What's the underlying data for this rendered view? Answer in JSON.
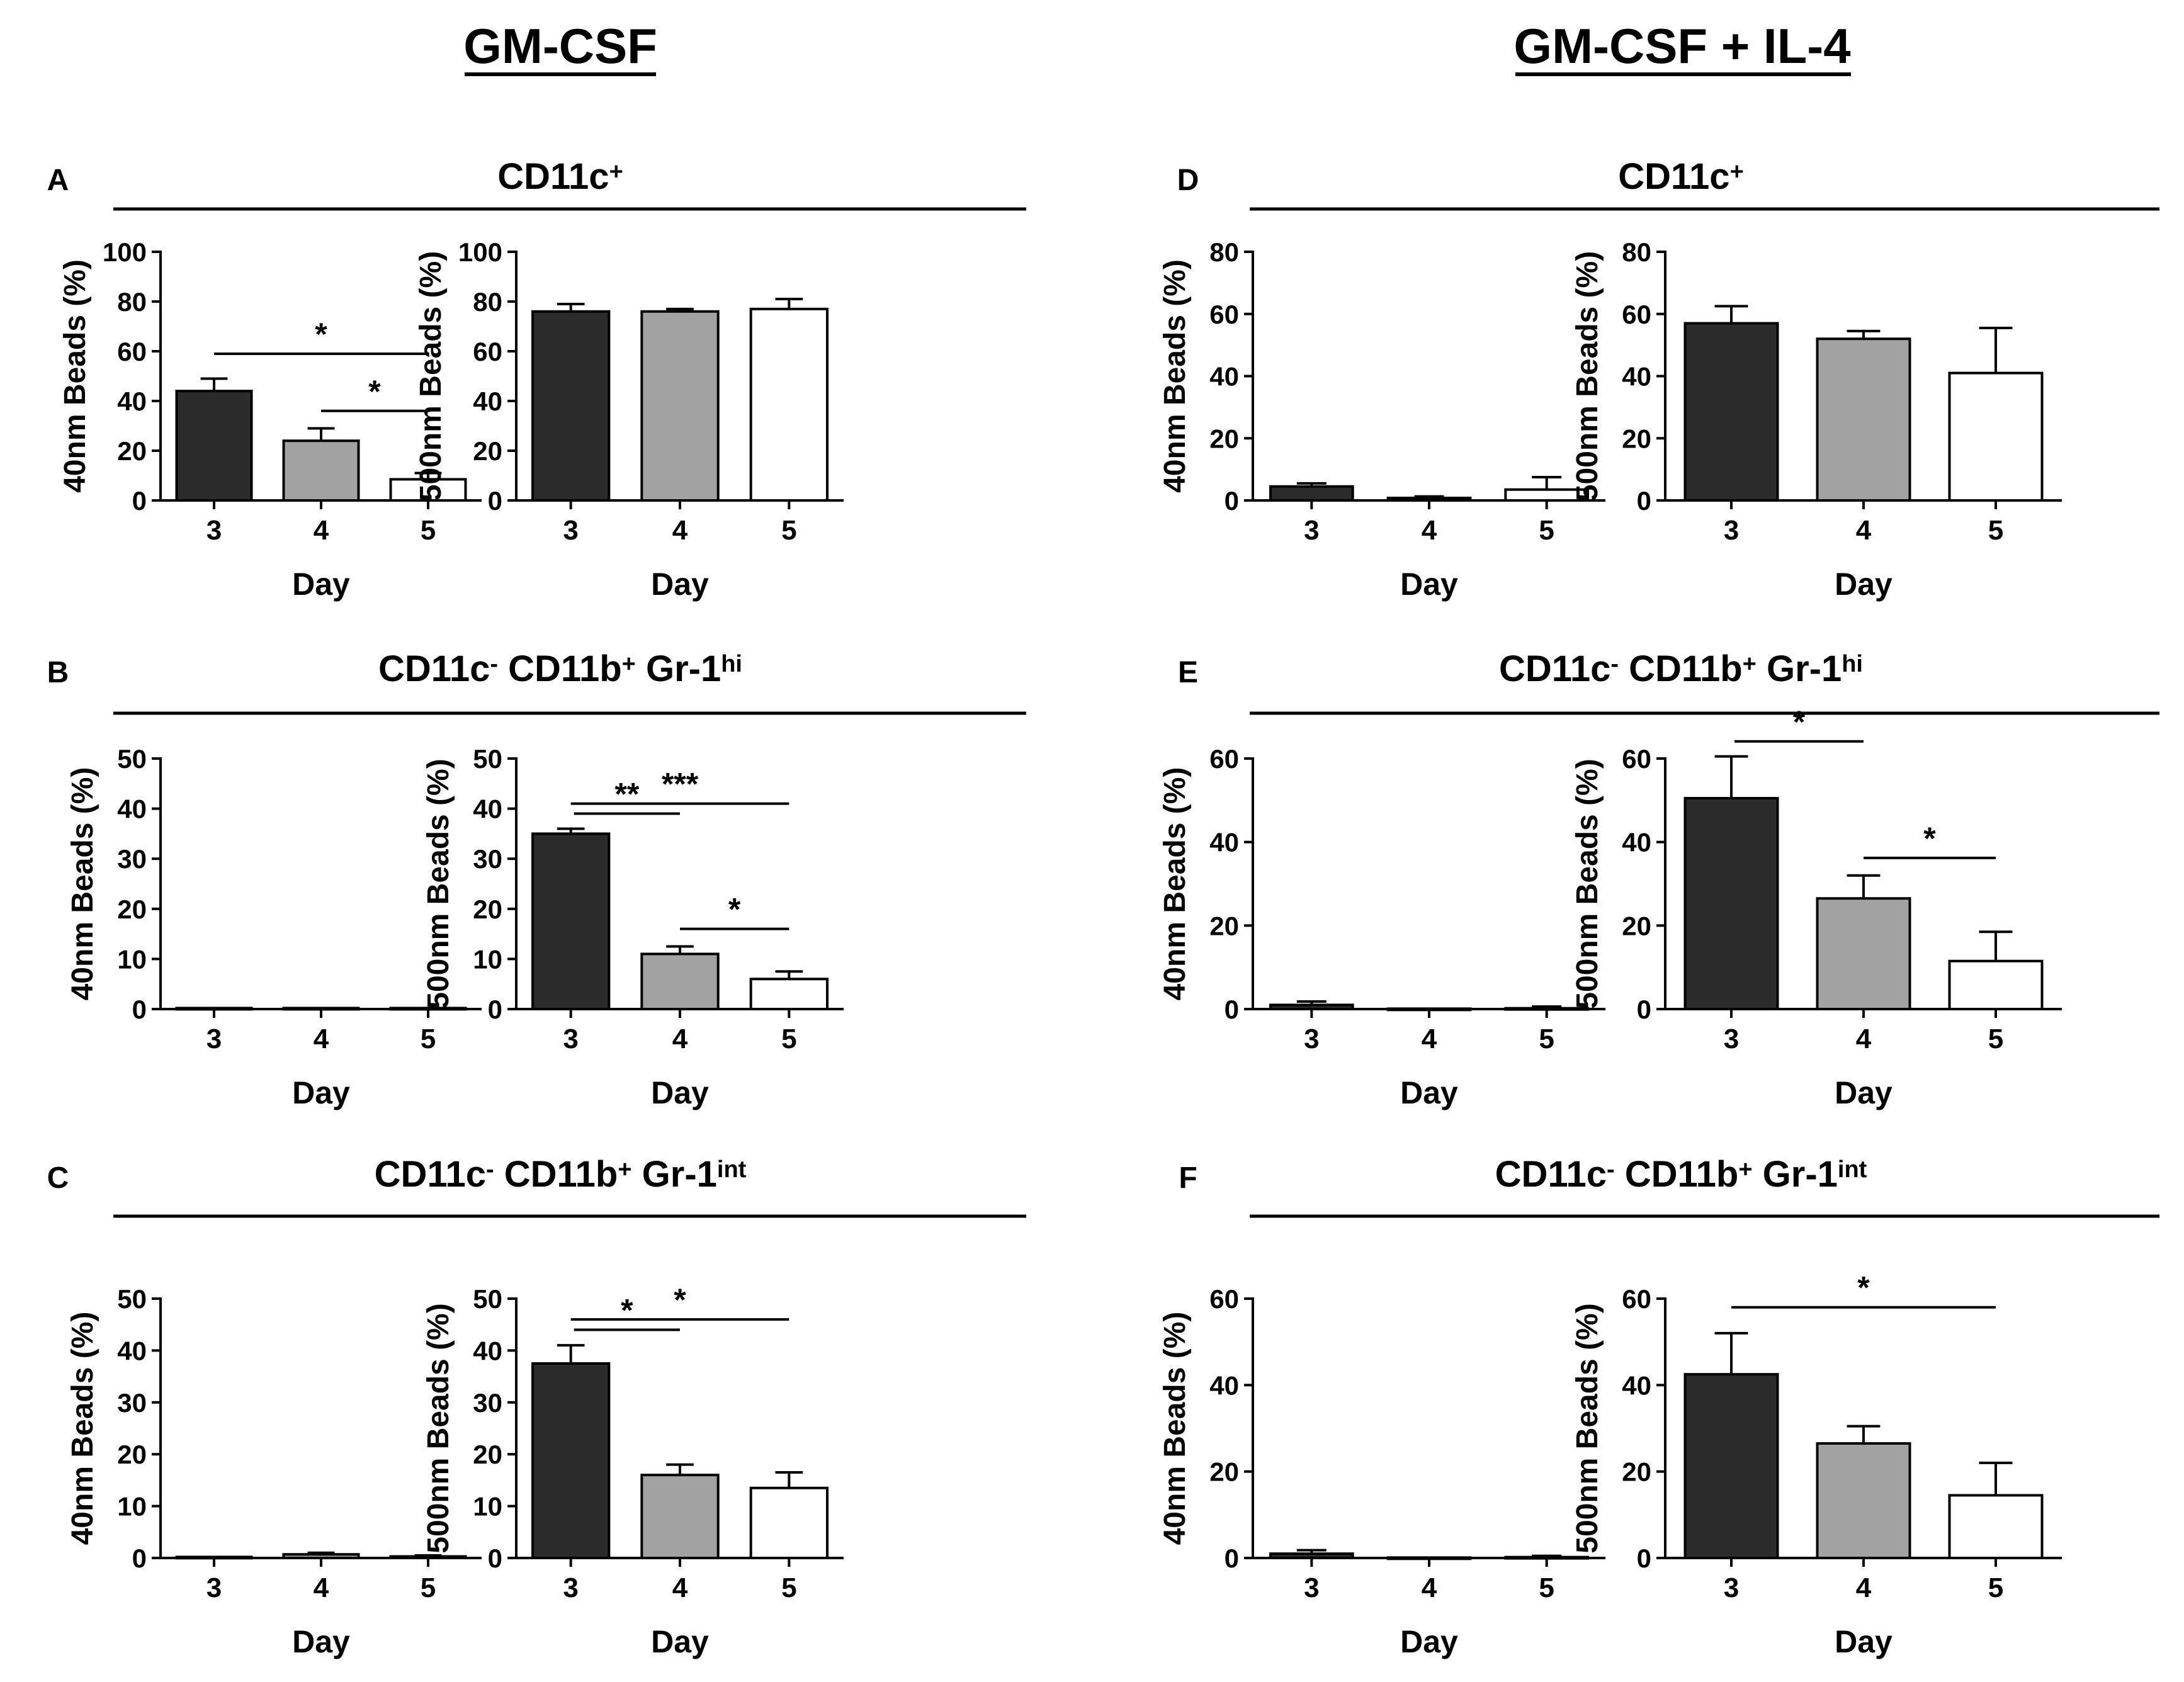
{
  "figure": {
    "column_titles": [
      "GM-CSF",
      "GM-CSF + IL-4"
    ]
  },
  "colors": {
    "day3": "#2b2b2b",
    "day4": "#a3a3a3",
    "day5": "#ffffff",
    "ink": "#000000"
  },
  "chart_data": [
    {
      "panel": "A",
      "population": {
        "base": "CD11c",
        "parts": [
          [
            "+",
            "sup"
          ]
        ]
      },
      "column": 0,
      "row": 0,
      "charts": [
        {
          "type": "bar",
          "ylabel": "40nm Beads (%)",
          "xlabel": "Day",
          "categories": [
            "3",
            "4",
            "5"
          ],
          "values": [
            44,
            24,
            8.5
          ],
          "errors": [
            5,
            5,
            2.5
          ],
          "ylim": [
            0,
            100
          ],
          "yticks": [
            0,
            20,
            40,
            60,
            80,
            100
          ],
          "sig": [
            {
              "from": 0,
              "to": 2,
              "label": "*"
            },
            {
              "from": 1,
              "to": 2,
              "label": "*"
            }
          ]
        },
        {
          "type": "bar",
          "ylabel": "500nm Beads (%)",
          "xlabel": "Day",
          "categories": [
            "3",
            "4",
            "5"
          ],
          "values": [
            76,
            76,
            77
          ],
          "errors": [
            3,
            1,
            4
          ],
          "ylim": [
            0,
            100
          ],
          "yticks": [
            0,
            20,
            40,
            60,
            80,
            100
          ],
          "sig": []
        }
      ]
    },
    {
      "panel": "B",
      "population": {
        "base": "CD11c",
        "parts": [
          [
            "-",
            "sup"
          ],
          [
            " CD11b",
            ""
          ],
          [
            "+",
            "sup"
          ],
          [
            " Gr-1",
            ""
          ],
          [
            "hi",
            "sup"
          ]
        ]
      },
      "column": 0,
      "row": 1,
      "charts": [
        {
          "type": "bar",
          "ylabel": "40nm Beads (%)",
          "xlabel": "Day",
          "categories": [
            "3",
            "4",
            "5"
          ],
          "values": [
            0.2,
            0.2,
            0.2
          ],
          "errors": [
            0,
            0,
            0
          ],
          "ylim": [
            0,
            50
          ],
          "yticks": [
            0,
            10,
            20,
            30,
            40,
            50
          ],
          "sig": []
        },
        {
          "type": "bar",
          "ylabel": "500nm Beads (%)",
          "xlabel": "Day",
          "categories": [
            "3",
            "4",
            "5"
          ],
          "values": [
            35,
            11,
            6
          ],
          "errors": [
            1,
            1.5,
            1.5
          ],
          "ylim": [
            0,
            50
          ],
          "yticks": [
            0,
            10,
            20,
            30,
            40,
            50
          ],
          "sig": [
            {
              "from": 0,
              "to": 2,
              "label": "***"
            },
            {
              "from": 0,
              "to": 1,
              "label": "**"
            },
            {
              "from": 1,
              "to": 2,
              "label": "*"
            }
          ]
        }
      ]
    },
    {
      "panel": "C",
      "population": {
        "base": "CD11c",
        "parts": [
          [
            "-",
            "sup"
          ],
          [
            " CD11b",
            ""
          ],
          [
            "+",
            "sup"
          ],
          [
            " Gr-1",
            ""
          ],
          [
            "int",
            "sup"
          ]
        ]
      },
      "column": 0,
      "row": 2,
      "charts": [
        {
          "type": "bar",
          "ylabel": "40nm Beads (%)",
          "xlabel": "Day",
          "categories": [
            "3",
            "4",
            "5"
          ],
          "values": [
            0.2,
            0.7,
            0.3
          ],
          "errors": [
            0,
            0.3,
            0.2
          ],
          "ylim": [
            0,
            50
          ],
          "yticks": [
            0,
            10,
            20,
            30,
            40,
            50
          ],
          "sig": []
        },
        {
          "type": "bar",
          "ylabel": "500nm Beads (%)",
          "xlabel": "Day",
          "categories": [
            "3",
            "4",
            "5"
          ],
          "values": [
            37.5,
            16,
            13.5
          ],
          "errors": [
            3.5,
            2,
            3
          ],
          "ylim": [
            0,
            50
          ],
          "yticks": [
            0,
            10,
            20,
            30,
            40,
            50
          ],
          "sig": [
            {
              "from": 0,
              "to": 2,
              "label": "*"
            },
            {
              "from": 0,
              "to": 1,
              "label": "*"
            }
          ]
        }
      ]
    },
    {
      "panel": "D",
      "population": {
        "base": "CD11c",
        "parts": [
          [
            "+",
            "sup"
          ]
        ]
      },
      "column": 1,
      "row": 0,
      "charts": [
        {
          "type": "bar",
          "ylabel": "40nm Beads (%)",
          "xlabel": "Day",
          "categories": [
            "3",
            "4",
            "5"
          ],
          "values": [
            4.5,
            0.8,
            3.5
          ],
          "errors": [
            1,
            0.5,
            4
          ],
          "ylim": [
            0,
            80
          ],
          "yticks": [
            0,
            20,
            40,
            60,
            80
          ],
          "sig": []
        },
        {
          "type": "bar",
          "ylabel": "500nm Beads (%)",
          "xlabel": "Day",
          "categories": [
            "3",
            "4",
            "5"
          ],
          "values": [
            57,
            52,
            41
          ],
          "errors": [
            5.5,
            2.5,
            14.5
          ],
          "ylim": [
            0,
            80
          ],
          "yticks": [
            0,
            20,
            40,
            60,
            80
          ],
          "sig": []
        }
      ]
    },
    {
      "panel": "E",
      "population": {
        "base": "CD11c",
        "parts": [
          [
            "-",
            "sup"
          ],
          [
            " CD11b",
            ""
          ],
          [
            "+",
            "sup"
          ],
          [
            " Gr-1",
            ""
          ],
          [
            "hi",
            "sup"
          ]
        ]
      },
      "column": 1,
      "row": 1,
      "charts": [
        {
          "type": "bar",
          "ylabel": "40nm Beads (%)",
          "xlabel": "Day",
          "categories": [
            "3",
            "4",
            "5"
          ],
          "values": [
            1,
            0.1,
            0.2
          ],
          "errors": [
            0.8,
            0,
            0.4
          ],
          "ylim": [
            0,
            60
          ],
          "yticks": [
            0,
            20,
            40,
            60
          ],
          "sig": []
        },
        {
          "type": "bar",
          "ylabel": "500nm Beads (%)",
          "xlabel": "Day",
          "categories": [
            "3",
            "4",
            "5"
          ],
          "values": [
            50.5,
            26.5,
            11.5
          ],
          "errors": [
            10,
            5.5,
            7
          ],
          "ylim": [
            0,
            60
          ],
          "yticks": [
            0,
            20,
            40,
            60
          ],
          "sig": [
            {
              "from": 0,
              "to": 1,
              "label": "*"
            },
            {
              "from": 1,
              "to": 2,
              "label": "*"
            }
          ]
        }
      ]
    },
    {
      "panel": "F",
      "population": {
        "base": "CD11c",
        "parts": [
          [
            "-",
            "sup"
          ],
          [
            " CD11b",
            ""
          ],
          [
            "+",
            "sup"
          ],
          [
            " Gr-1",
            ""
          ],
          [
            "int",
            "sup"
          ]
        ]
      },
      "column": 1,
      "row": 2,
      "charts": [
        {
          "type": "bar",
          "ylabel": "40nm Beads (%)",
          "xlabel": "Day",
          "categories": [
            "3",
            "4",
            "5"
          ],
          "values": [
            1,
            0.1,
            0.2
          ],
          "errors": [
            0.8,
            0,
            0.3
          ],
          "ylim": [
            0,
            60
          ],
          "yticks": [
            0,
            20,
            40,
            60
          ],
          "sig": []
        },
        {
          "type": "bar",
          "ylabel": "500nm Beads (%)",
          "xlabel": "Day",
          "categories": [
            "3",
            "4",
            "5"
          ],
          "values": [
            42.5,
            26.5,
            14.5
          ],
          "errors": [
            9.5,
            4,
            7.5
          ],
          "ylim": [
            0,
            60
          ],
          "yticks": [
            0,
            20,
            40,
            60
          ],
          "sig": [
            {
              "from": 0,
              "to": 2,
              "label": "*"
            }
          ]
        }
      ]
    }
  ]
}
